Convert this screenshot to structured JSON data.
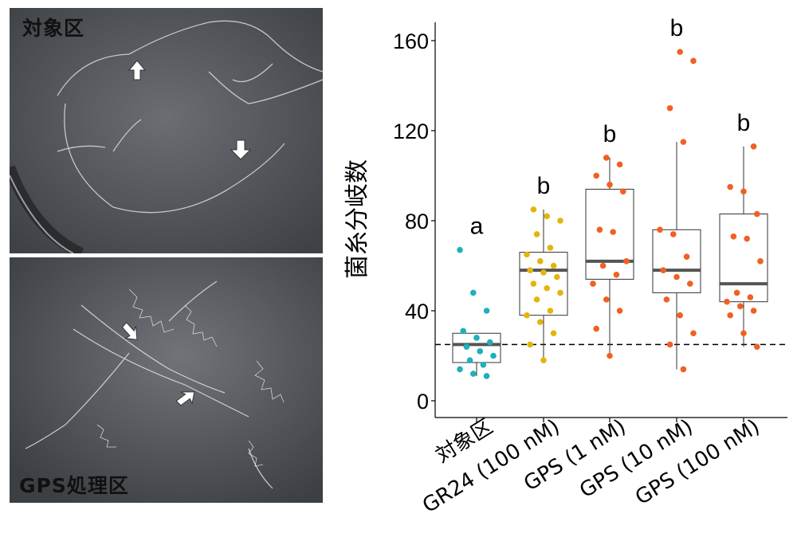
{
  "photos": {
    "top_label": "対象区",
    "bottom_label": "GPS処理区"
  },
  "chart_data": {
    "type": "box",
    "ylabel": "菌糸分岐数",
    "xlabel": "",
    "ylim": [
      0,
      165
    ],
    "y_ticks": [
      "0",
      "40",
      "80",
      "120",
      "160"
    ],
    "reference_line": 25,
    "categories": [
      "対象区",
      "GR24 (100 nM)",
      "GPS (1 nM)",
      "GPS (10 nM)",
      "GPS (100 nM)"
    ],
    "significance": [
      "a",
      "b",
      "b",
      "b",
      "b"
    ],
    "colors": [
      "#1fb0b8",
      "#e3b50c",
      "#f06023",
      "#f06023",
      "#f06023"
    ],
    "boxes": [
      {
        "q1": 17,
        "median": 25,
        "q3": 30,
        "whisker_low": 11,
        "whisker_high": 30
      },
      {
        "q1": 38,
        "median": 58,
        "q3": 66,
        "whisker_low": 18,
        "whisker_high": 85
      },
      {
        "q1": 54,
        "median": 62,
        "q3": 94,
        "whisker_low": 20,
        "whisker_high": 108
      },
      {
        "q1": 48,
        "median": 58,
        "q3": 76,
        "whisker_low": 14,
        "whisker_high": 115
      },
      {
        "q1": 44,
        "median": 52,
        "q3": 83,
        "whisker_low": 24,
        "whisker_high": 113
      }
    ],
    "points": [
      [
        67,
        48,
        40,
        31,
        28,
        26,
        24,
        22,
        20,
        18,
        16,
        14,
        12,
        11
      ],
      [
        85,
        82,
        80,
        74,
        68,
        65,
        62,
        60,
        58,
        57,
        55,
        52,
        50,
        48,
        45,
        40,
        38,
        35,
        30,
        25,
        18
      ],
      [
        108,
        105,
        100,
        96,
        93,
        76,
        75,
        62,
        60,
        56,
        52,
        45,
        40,
        32,
        20
      ],
      [
        155,
        151,
        130,
        115,
        76,
        74,
        64,
        58,
        55,
        52,
        45,
        38,
        30,
        25,
        14
      ],
      [
        113,
        95,
        93,
        83,
        73,
        72,
        62,
        48,
        46,
        44,
        42,
        40,
        38,
        30,
        24
      ]
    ]
  }
}
